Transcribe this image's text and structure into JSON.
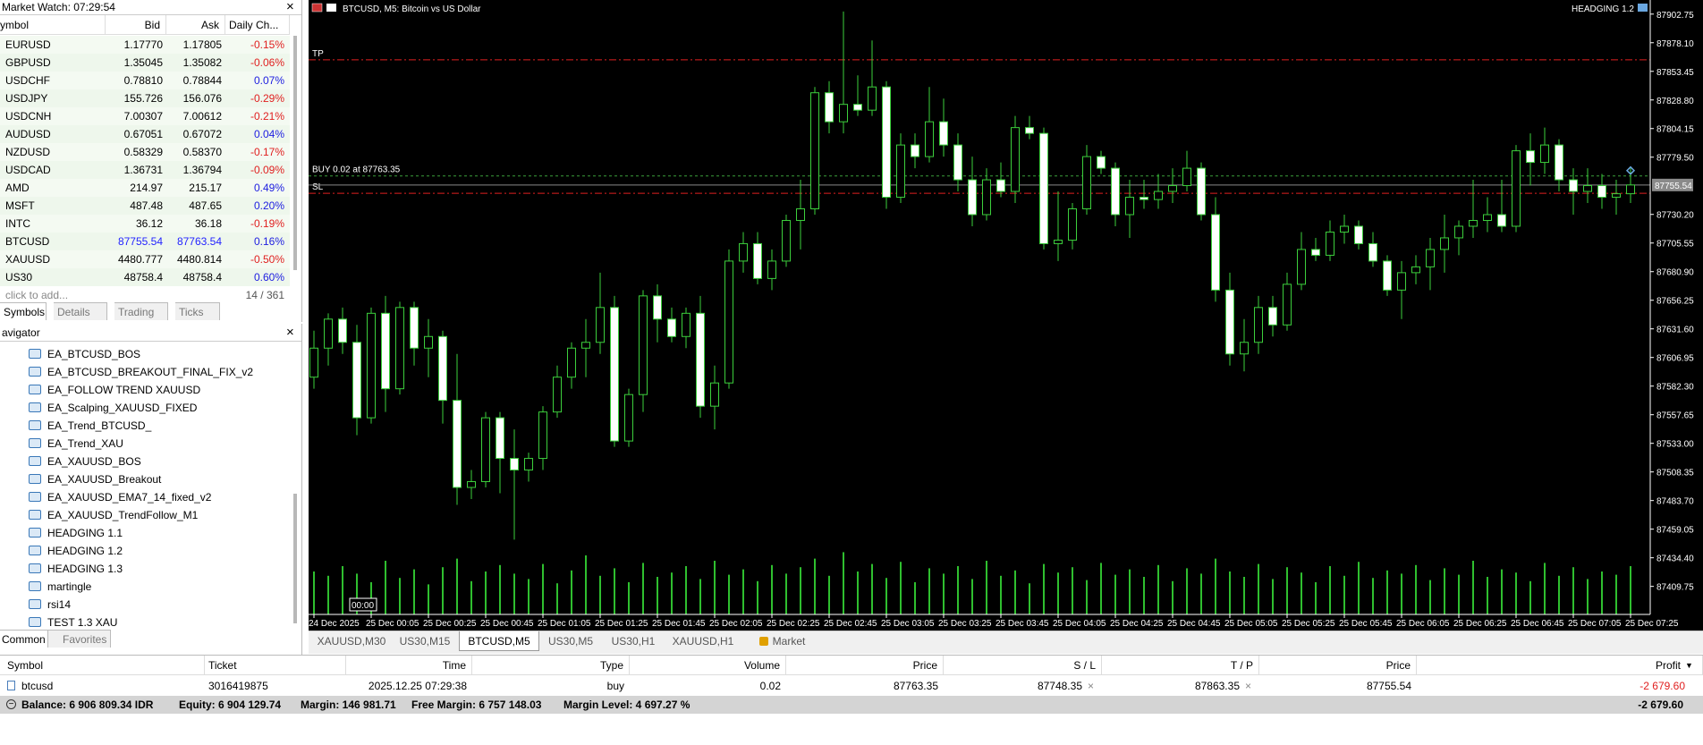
{
  "market_watch": {
    "title": "Market Watch: 07:29:54",
    "columns": [
      "ymbol",
      "Bid",
      "Ask",
      "Daily Ch..."
    ],
    "rows": [
      {
        "symbol": "EURUSD",
        "bid": "1.17770",
        "ask": "1.17805",
        "change": "-0.15%"
      },
      {
        "symbol": "GBPUSD",
        "bid": "1.35045",
        "ask": "1.35082",
        "change": "-0.06%"
      },
      {
        "symbol": "USDCHF",
        "bid": "0.78810",
        "ask": "0.78844",
        "change": "0.07%"
      },
      {
        "symbol": "USDJPY",
        "bid": "155.726",
        "ask": "156.076",
        "change": "-0.29%"
      },
      {
        "symbol": "USDCNH",
        "bid": "7.00307",
        "ask": "7.00612",
        "change": "-0.21%"
      },
      {
        "symbol": "AUDUSD",
        "bid": "0.67051",
        "ask": "0.67072",
        "change": "0.04%"
      },
      {
        "symbol": "NZDUSD",
        "bid": "0.58329",
        "ask": "0.58370",
        "change": "-0.17%"
      },
      {
        "symbol": "USDCAD",
        "bid": "1.36731",
        "ask": "1.36794",
        "change": "-0.09%"
      },
      {
        "symbol": "AMD",
        "bid": "214.97",
        "ask": "215.17",
        "change": "0.49%"
      },
      {
        "symbol": "MSFT",
        "bid": "487.48",
        "ask": "487.65",
        "change": "0.20%"
      },
      {
        "symbol": "INTC",
        "bid": "36.12",
        "ask": "36.18",
        "change": "-0.19%"
      },
      {
        "symbol": "BTCUSD",
        "bid": "87755.54",
        "ask": "87763.54",
        "change": "0.16%",
        "price_color": "#2424ff"
      },
      {
        "symbol": "XAUUSD",
        "bid": "4480.777",
        "ask": "4480.814",
        "change": "-0.50%"
      },
      {
        "symbol": "US30",
        "bid": "48758.4",
        "ask": "48758.4",
        "change": "0.60%"
      }
    ],
    "add_hint": "click to add...",
    "count": "14 / 361",
    "tabs": [
      "Symbols",
      "Details",
      "Trading",
      "Ticks"
    ]
  },
  "navigator": {
    "title": "avigator",
    "items": [
      "EA_BTCUSD_BOS",
      "EA_BTCUSD_BREAKOUT_FINAL_FIX_v2",
      "EA_FOLLOW TREND XAUUSD",
      "EA_Scalping_XAUUSD_FIXED",
      "EA_Trend_BTCUSD_",
      "EA_Trend_XAU",
      "EA_XAUUSD_BOS",
      "EA_XAUUSD_Breakout",
      "EA_XAUUSD_EMA7_14_fixed_v2",
      "EA_XAUUSD_TrendFollow_M1",
      "HEADGING 1.1",
      "HEADGING 1.2",
      "HEADGING 1.3",
      "martingle",
      "rsi14",
      "TEST 1.3 XAU"
    ],
    "tabs": [
      "Common",
      "Favorites"
    ]
  },
  "chart_data": {
    "type": "candlestick",
    "title": "BTCUSD, M5:  Bitcoin vs US Dollar",
    "expert": "HEADGING 1.2",
    "time_marker": "00:00",
    "up_fill": "#000000",
    "down_fill": "#ffffff",
    "line_color": "#3ccf3c",
    "volume_color": "#2fbf2f",
    "ylim": [
      87385.6,
      87914.9
    ],
    "yticks": [
      87902.75,
      {
        "value": 87878.1,
        "label": "87878.10"
      },
      87853.45,
      {
        "value": 87828.8,
        "label": "87828.80"
      },
      87804.15,
      {
        "value": 87779.5,
        "label": "87779.50"
      },
      {
        "value": 87730.2,
        "label": "87730.20"
      },
      87705.55,
      {
        "value": 87680.9,
        "label": "87680.90"
      },
      87656.25,
      {
        "value": 87631.6,
        "label": "87631.60"
      },
      87606.95,
      {
        "value": 87582.3,
        "label": "87582.30"
      },
      87557.65,
      {
        "value": 87533,
        "label": "87533.00"
      },
      87508.35,
      {
        "value": 87483.7,
        "label": "87483.70"
      },
      87459.05,
      {
        "value": 87434.4,
        "label": "87434.40"
      },
      87409.75
    ],
    "xticks": [
      "24 Dec 2025",
      "25 Dec 00:05",
      "25 Dec 00:25",
      "25 Dec 00:45",
      "25 Dec 01:05",
      "25 Dec 01:25",
      "25 Dec 01:45",
      "25 Dec 02:05",
      "25 Dec 02:25",
      "25 Dec 02:45",
      "25 Dec 03:05",
      "25 Dec 03:25",
      "25 Dec 03:45",
      "25 Dec 04:05",
      "25 Dec 04:25",
      "25 Dec 04:45",
      "25 Dec 05:05",
      "25 Dec 05:25",
      "25 Dec 05:45",
      "25 Dec 06:05",
      "25 Dec 06:25",
      "25 Dec 06:45",
      "25 Dec 07:05",
      "25 Dec 07:25"
    ],
    "bid": 87755.54,
    "levels": [
      {
        "label": "TP",
        "value": 87863.35,
        "color": "#e02020"
      },
      {
        "label": "BUY 0.02 at 87763.35",
        "value": 87763.35,
        "color": "#3aa03a"
      },
      {
        "label": "SL",
        "value": 87748.35,
        "color": "#e02020"
      }
    ],
    "ohlc": [
      [
        87590,
        87630,
        87580,
        87615
      ],
      [
        87615,
        87645,
        87600,
        87640
      ],
      [
        87640,
        87650,
        87610,
        87620
      ],
      [
        87620,
        87635,
        87540,
        87555
      ],
      [
        87555,
        87650,
        87550,
        87645
      ],
      [
        87645,
        87660,
        87560,
        87580
      ],
      [
        87580,
        87655,
        87575,
        87650
      ],
      [
        87650,
        87655,
        87600,
        87615
      ],
      [
        87615,
        87640,
        87590,
        87625
      ],
      [
        87625,
        87630,
        87550,
        87570
      ],
      [
        87570,
        87610,
        87480,
        87495
      ],
      [
        87495,
        87510,
        87485,
        87500
      ],
      [
        87500,
        87560,
        87495,
        87555
      ],
      [
        87555,
        87560,
        87490,
        87520
      ],
      [
        87520,
        87545,
        87450,
        87510
      ],
      [
        87510,
        87525,
        87500,
        87520
      ],
      [
        87520,
        87565,
        87510,
        87560
      ],
      [
        87560,
        87600,
        87555,
        87590
      ],
      [
        87590,
        87620,
        87580,
        87615
      ],
      [
        87615,
        87640,
        87590,
        87620
      ],
      [
        87620,
        87680,
        87610,
        87650
      ],
      [
        87650,
        87660,
        87530,
        87535
      ],
      [
        87535,
        87580,
        87530,
        87575
      ],
      [
        87575,
        87665,
        87560,
        87660
      ],
      [
        87660,
        87670,
        87620,
        87640
      ],
      [
        87640,
        87650,
        87620,
        87625
      ],
      [
        87625,
        87650,
        87615,
        87645
      ],
      [
        87645,
        87660,
        87555,
        87565
      ],
      [
        87565,
        87600,
        87545,
        87585
      ],
      [
        87585,
        87700,
        87580,
        87690
      ],
      [
        87690,
        87715,
        87680,
        87705
      ],
      [
        87705,
        87715,
        87670,
        87675
      ],
      [
        87675,
        87700,
        87665,
        87690
      ],
      [
        87690,
        87730,
        87685,
        87725
      ],
      [
        87725,
        87760,
        87700,
        87735
      ],
      [
        87735,
        87840,
        87730,
        87835
      ],
      [
        87835,
        87845,
        87800,
        87810
      ],
      [
        87810,
        87905,
        87800,
        87825
      ],
      [
        87825,
        87850,
        87815,
        87820
      ],
      [
        87820,
        87880,
        87815,
        87840
      ],
      [
        87840,
        87845,
        87735,
        87745
      ],
      [
        87745,
        87800,
        87740,
        87790
      ],
      [
        87790,
        87800,
        87770,
        87780
      ],
      [
        87780,
        87840,
        87775,
        87810
      ],
      [
        87810,
        87830,
        87780,
        87790
      ],
      [
        87790,
        87800,
        87750,
        87760
      ],
      [
        87760,
        87780,
        87720,
        87730
      ],
      [
        87730,
        87770,
        87725,
        87760
      ],
      [
        87760,
        87775,
        87745,
        87750
      ],
      [
        87750,
        87815,
        87740,
        87805
      ],
      [
        87805,
        87815,
        87795,
        87800
      ],
      [
        87800,
        87805,
        87700,
        87705
      ],
      [
        87705,
        87750,
        87690,
        87708
      ],
      [
        87708,
        87740,
        87700,
        87735
      ],
      [
        87735,
        87790,
        87730,
        87780
      ],
      [
        87780,
        87785,
        87765,
        87770
      ],
      [
        87770,
        87775,
        87720,
        87730
      ],
      [
        87730,
        87760,
        87710,
        87745
      ],
      [
        87745,
        87760,
        87735,
        87743
      ],
      [
        87743,
        87765,
        87735,
        87750
      ],
      [
        87750,
        87770,
        87740,
        87755
      ],
      [
        87755,
        87785,
        87750,
        87770
      ],
      [
        87770,
        87775,
        87725,
        87730
      ],
      [
        87730,
        87745,
        87655,
        87665
      ],
      [
        87665,
        87680,
        87600,
        87610
      ],
      [
        87610,
        87640,
        87595,
        87620
      ],
      [
        87620,
        87660,
        87610,
        87650
      ],
      [
        87650,
        87660,
        87625,
        87635
      ],
      [
        87635,
        87680,
        87630,
        87670
      ],
      [
        87670,
        87715,
        87665,
        87700
      ],
      [
        87700,
        87710,
        87690,
        87695
      ],
      [
        87695,
        87725,
        87690,
        87715
      ],
      [
        87715,
        87730,
        87705,
        87720
      ],
      [
        87720,
        87725,
        87700,
        87705
      ],
      [
        87705,
        87715,
        87685,
        87690
      ],
      [
        87690,
        87695,
        87660,
        87665
      ],
      [
        87665,
        87690,
        87640,
        87680
      ],
      [
        87680,
        87695,
        87670,
        87685
      ],
      [
        87685,
        87710,
        87665,
        87700
      ],
      [
        87700,
        87730,
        87680,
        87710
      ],
      [
        87710,
        87725,
        87695,
        87720
      ],
      [
        87720,
        87760,
        87710,
        87725
      ],
      [
        87725,
        87745,
        87715,
        87730
      ],
      [
        87730,
        87760,
        87715,
        87720
      ],
      [
        87720,
        87790,
        87715,
        87785
      ],
      [
        87785,
        87800,
        87755,
        87775
      ],
      [
        87775,
        87805,
        87765,
        87790
      ],
      [
        87790,
        87795,
        87750,
        87760
      ],
      [
        87760,
        87770,
        87730,
        87750
      ],
      [
        87750,
        87770,
        87740,
        87755
      ],
      [
        87755,
        87765,
        87735,
        87745
      ],
      [
        87745,
        87760,
        87730,
        87748
      ],
      [
        87748,
        87770,
        87740,
        87755.54
      ]
    ],
    "volumes": [
      40,
      36,
      45,
      38,
      30,
      50,
      34,
      42,
      28,
      44,
      52,
      31,
      40,
      46,
      38,
      33,
      47,
      29,
      41,
      55,
      36,
      43,
      30,
      48,
      35,
      39,
      45,
      33,
      50,
      37,
      42,
      31,
      46,
      38,
      44,
      52,
      36,
      58,
      40,
      47,
      34,
      49,
      30,
      43,
      38,
      45,
      33,
      50,
      36,
      41,
      29,
      47,
      39,
      44,
      32,
      48,
      37,
      42,
      35,
      46,
      31,
      43,
      38,
      52,
      40,
      35,
      47,
      33,
      44,
      39,
      30,
      45,
      36,
      49,
      34,
      41,
      38,
      46,
      32,
      43,
      37,
      50,
      35,
      42,
      39,
      31,
      48,
      36,
      44,
      33,
      40,
      37,
      45
    ]
  },
  "chart_tabs": {
    "items": [
      "XAUUSD,M30",
      "US30,M15",
      "BTCUSD,M5",
      "US30,M5",
      "US30,H1",
      "XAUUSD,H1",
      "Market"
    ],
    "active": 2
  },
  "trade": {
    "columns": [
      "Symbol",
      "Ticket",
      "Time",
      "Type",
      "Volume",
      "Price",
      "S / L",
      "T / P",
      "Price",
      "Profit"
    ],
    "rows": [
      [
        "btcusd",
        "3016419875",
        "2025.12.25 07:29:38",
        "buy",
        "0.02",
        "87763.35",
        "87748.35",
        "87863.35",
        "87755.54",
        "-2 679.60"
      ]
    ],
    "balance": [
      "Balance: 6 906 809.34 IDR",
      "Equity: 6 904 129.74",
      "Margin: 146 981.71",
      "Free Margin: 6 757 148.03",
      "Margin Level: 4 697.27 %"
    ],
    "total": "-2 679.60"
  }
}
